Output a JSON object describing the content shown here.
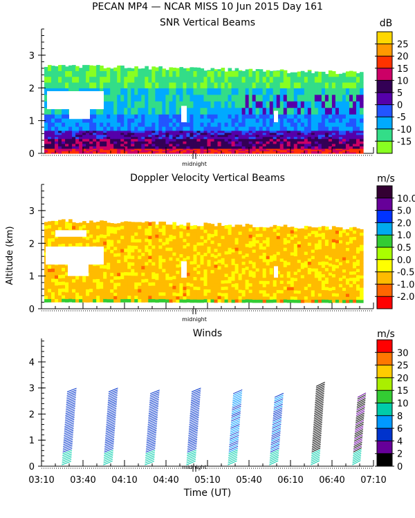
{
  "title": "PECAN MP4 — NCAR MISS  10 Jun 2015 Day 161",
  "y_axis_label": "Altitude (km)",
  "x_axis_label": "Time (UT)",
  "midnight_label": "midnight",
  "time_ticks": [
    "03:10",
    "03:40",
    "04:10",
    "04:40",
    "05:10",
    "05:40",
    "06:10",
    "06:40",
    "07:10"
  ],
  "chart_data": [
    {
      "id": "snr",
      "type": "heatmap",
      "title": "SNR Vertical Beams",
      "units": "dB",
      "xlabel": "",
      "ylabel": "",
      "ylim": [
        0,
        3.8
      ],
      "y_ticks": [
        "0",
        "1",
        "2",
        "3"
      ],
      "colorbar_ticks": [
        "25",
        "20",
        "15",
        "10",
        "5",
        "0",
        "-5",
        "-10",
        "-15"
      ],
      "colorbar_colors": [
        "#ffd700",
        "#ff9900",
        "#ff3300",
        "#cc0066",
        "#330055",
        "#5500aa",
        "#2255ff",
        "#00aaff",
        "#33dd88",
        "#88ff22"
      ],
      "data_top_km": 2.7,
      "layers": [
        {
          "from_km": 0.0,
          "to_km": 0.15,
          "snr_db": 15
        },
        {
          "from_km": 0.15,
          "to_km": 0.45,
          "snr_db": 8
        },
        {
          "from_km": 0.45,
          "to_km": 0.7,
          "snr_db": 2
        },
        {
          "from_km": 0.7,
          "to_km": 1.2,
          "snr_db": -5
        },
        {
          "from_km": 1.2,
          "to_km": 2.0,
          "snr_db": -10
        },
        {
          "from_km": 2.0,
          "to_km": 2.7,
          "snr_db": -14
        }
      ]
    },
    {
      "id": "doppler",
      "type": "heatmap",
      "title": "Doppler Velocity Vertical Beams",
      "units": "m/s",
      "xlabel": "",
      "ylabel": "Altitude (km)",
      "ylim": [
        0,
        3.8
      ],
      "y_ticks": [
        "0",
        "1",
        "2",
        "3"
      ],
      "colorbar_ticks": [
        "10.0",
        "5.0",
        "2.0",
        "1.0",
        "0.5",
        "0.0",
        "-0.5",
        "-1.0",
        "-2.0"
      ],
      "colorbar_colors": [
        "#330033",
        "#660099",
        "#0033ff",
        "#00aaee",
        "#33cc33",
        "#aaff00",
        "#ffff00",
        "#ffbb00",
        "#ff6600",
        "#ff0000"
      ],
      "data_top_km": 2.7,
      "dominant_velocity_ms": -0.3
    },
    {
      "id": "winds",
      "type": "scatter",
      "title": "Winds",
      "units": "m/s",
      "xlabel": "Time (UT)",
      "ylabel": "",
      "ylim": [
        0,
        4.9
      ],
      "y_ticks": [
        "0",
        "1",
        "2",
        "3",
        "4"
      ],
      "colorbar_ticks": [
        "30",
        "25",
        "20",
        "15",
        "10",
        "8",
        "6",
        "4",
        "2",
        "0"
      ],
      "colorbar_colors": [
        "#ff0000",
        "#ff7700",
        "#ffcc00",
        "#aaee00",
        "#33cc33",
        "#00ccaa",
        "#0099ff",
        "#0033cc",
        "#660099",
        "#000000"
      ],
      "profiles": [
        {
          "time_hr": 3.41,
          "top_km": 2.9,
          "speed_ms": 5,
          "dir_deg": 230
        },
        {
          "time_hr": 3.91,
          "top_km": 2.9,
          "speed_ms": 5,
          "dir_deg": 225
        },
        {
          "time_hr": 4.41,
          "top_km": 2.8,
          "speed_ms": 5,
          "dir_deg": 230
        },
        {
          "time_hr": 4.91,
          "top_km": 2.9,
          "speed_ms": 5,
          "dir_deg": 225
        },
        {
          "time_hr": 5.41,
          "top_km": 2.8,
          "speed_ms": 6,
          "dir_deg": 220
        },
        {
          "time_hr": 5.91,
          "top_km": 2.7,
          "speed_ms": 6,
          "dir_deg": 215
        },
        {
          "time_hr": 6.41,
          "top_km": 3.1,
          "speed_ms": 1,
          "dir_deg": 210
        },
        {
          "time_hr": 6.91,
          "top_km": 2.7,
          "speed_ms": 2,
          "dir_deg": 200
        }
      ]
    }
  ]
}
